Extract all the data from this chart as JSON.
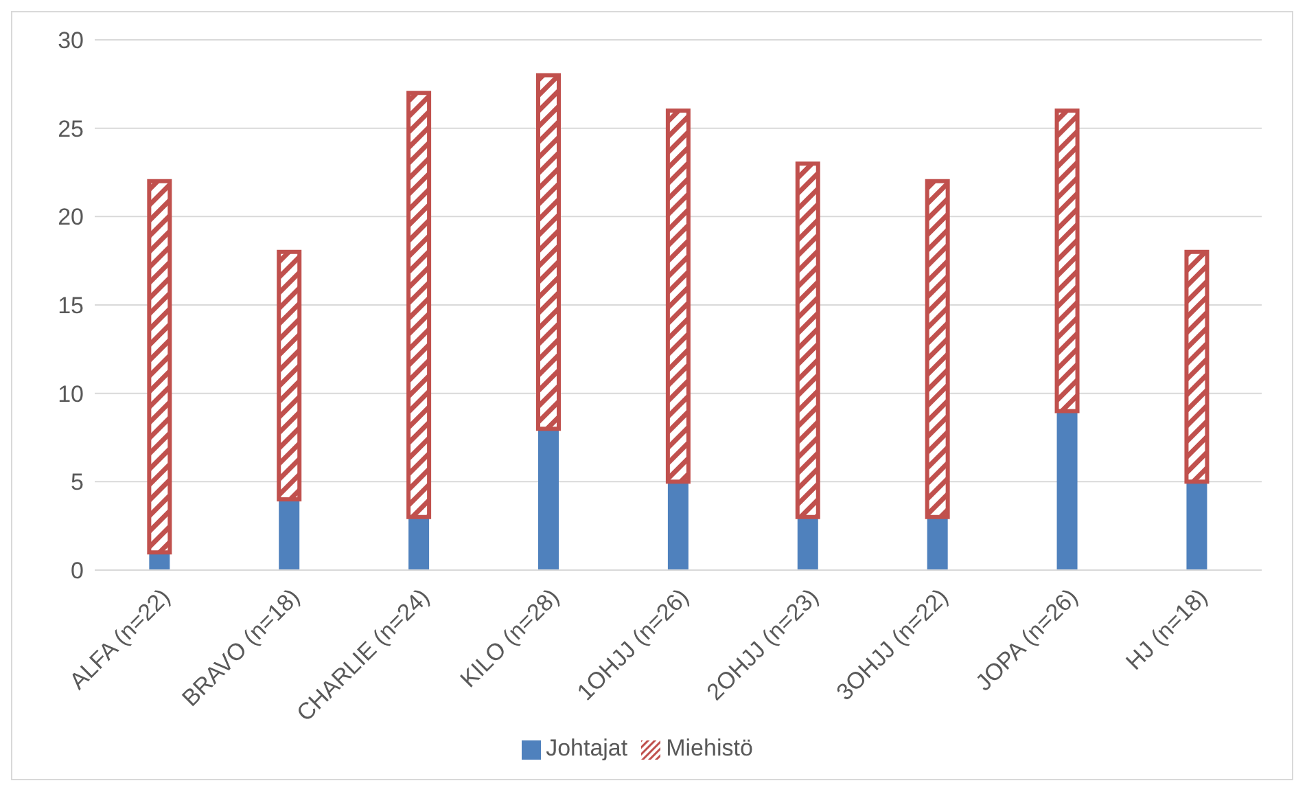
{
  "chart_data": {
    "type": "bar",
    "stacked": true,
    "categories": [
      "ALFA (n=22)",
      "BRAVO (n=18)",
      "CHARLIE (n=24)",
      "KILO (n=28)",
      "1OHJJ (n=26)",
      "2OHJJ (n=23)",
      "3OHJJ (n=22)",
      "JOPA (n=26)",
      "HJ (n=18)"
    ],
    "series": [
      {
        "name": "Johtajat",
        "color": "#4f81bd",
        "values": [
          1,
          4,
          3,
          8,
          5,
          3,
          3,
          9,
          5
        ]
      },
      {
        "name": "Miehistö",
        "color": "#c0504d",
        "values": [
          21,
          14,
          24,
          20,
          21,
          20,
          19,
          17,
          13
        ]
      }
    ],
    "ylim": [
      0,
      30
    ],
    "yticks": [
      0,
      5,
      10,
      15,
      20,
      25,
      30
    ],
    "grid": "y",
    "legend": "bottom"
  }
}
